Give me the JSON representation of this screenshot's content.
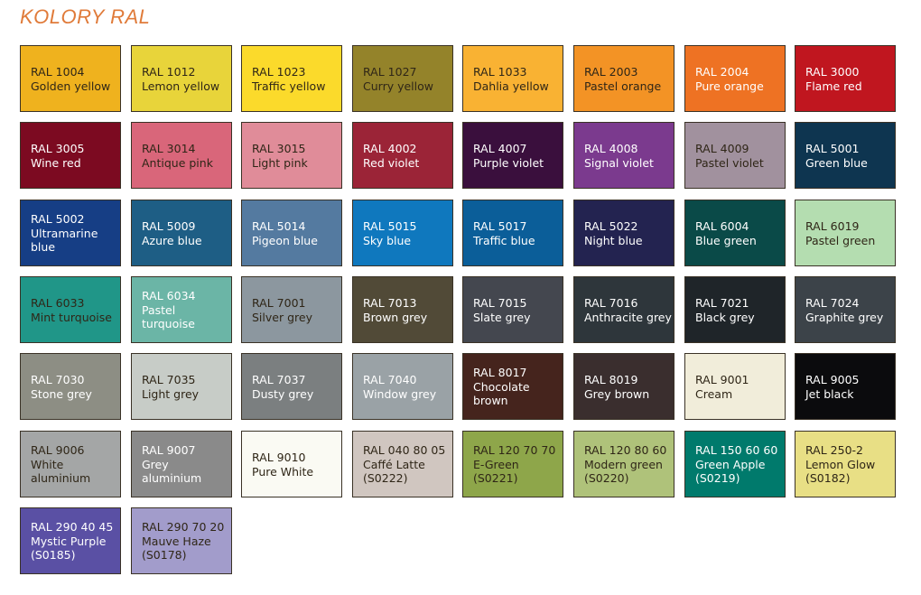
{
  "title": "KOLORY RAL",
  "swatches": [
    [
      {
        "code": "RAL 1004",
        "name": "Golden yellow",
        "color": "#EFB21E",
        "text": "dark"
      },
      {
        "code": "RAL 1012",
        "name": "Lemon yellow",
        "color": "#E8D43A",
        "text": "dark"
      },
      {
        "code": "RAL 1023",
        "name": "Traffic yellow",
        "color": "#FBDA2B",
        "text": "dark"
      },
      {
        "code": "RAL 1027",
        "name": "Curry yellow",
        "color": "#94832A",
        "text": "dark"
      },
      {
        "code": "RAL 1033",
        "name": "Dahlia yellow",
        "color": "#F9B233",
        "text": "dark"
      },
      {
        "code": "RAL 2003",
        "name": "Pastel orange",
        "color": "#F39325",
        "text": "dark"
      },
      {
        "code": "RAL 2004",
        "name": "Pure orange",
        "color": "#EE7223",
        "text": "light"
      },
      {
        "code": "RAL 3000",
        "name": "Flame red",
        "color": "#C0161F",
        "text": "light"
      }
    ],
    [
      {
        "code": "RAL 3005",
        "name": "Wine red",
        "color": "#7C0A21",
        "text": "light"
      },
      {
        "code": "RAL 3014",
        "name": "Antique pink",
        "color": "#D9667A",
        "text": "dark"
      },
      {
        "code": "RAL 3015",
        "name": "Light pink",
        "color": "#E08C99",
        "text": "dark"
      },
      {
        "code": "RAL 4002",
        "name": "Red violet",
        "color": "#9B2437",
        "text": "light"
      },
      {
        "code": "RAL 4007",
        "name": "Purple violet",
        "color": "#3A0F3D",
        "text": "light"
      },
      {
        "code": "RAL 4008",
        "name": "Signal violet",
        "color": "#7B3A8E",
        "text": "light"
      },
      {
        "code": "RAL 4009",
        "name": "Pastel violet",
        "color": "#A1919E",
        "text": "dark"
      },
      {
        "code": "RAL 5001",
        "name": "Green blue",
        "color": "#0E3550",
        "text": "light"
      }
    ],
    [
      {
        "code": "RAL 5002",
        "name": "Ultramarine blue",
        "color": "#163E85",
        "text": "light"
      },
      {
        "code": "RAL 5009",
        "name": "Azure blue",
        "color": "#1E5E85",
        "text": "light"
      },
      {
        "code": "RAL 5014",
        "name": "Pigeon blue",
        "color": "#547AA0",
        "text": "light"
      },
      {
        "code": "RAL 5015",
        "name": "Sky blue",
        "color": "#0F78BE",
        "text": "light"
      },
      {
        "code": "RAL 5017",
        "name": "Traffic blue",
        "color": "#0B5E99",
        "text": "light"
      },
      {
        "code": "RAL 5022",
        "name": "Night blue",
        "color": "#232350",
        "text": "light"
      },
      {
        "code": "RAL 6004",
        "name": "Blue green",
        "color": "#0A4A48",
        "text": "light"
      },
      {
        "code": "RAL 6019",
        "name": "Pastel green",
        "color": "#B4DDB0",
        "text": "dark"
      }
    ],
    [
      {
        "code": "RAL 6033",
        "name": "Mint turquoise",
        "color": "#209688",
        "text": "dark"
      },
      {
        "code": "RAL 6034",
        "name": "Pastel turquoise",
        "color": "#6BB5A6",
        "text": "light"
      },
      {
        "code": "RAL 7001",
        "name": "Silver grey",
        "color": "#8C979F",
        "text": "dark"
      },
      {
        "code": "RAL 7013",
        "name": "Brown grey",
        "color": "#514A37",
        "text": "light"
      },
      {
        "code": "RAL 7015",
        "name": "Slate grey",
        "color": "#44474F",
        "text": "light"
      },
      {
        "code": "RAL 7016",
        "name": "Anthracite grey",
        "color": "#2E363B",
        "text": "light"
      },
      {
        "code": "RAL 7021",
        "name": "Black grey",
        "color": "#1F2529",
        "text": "light"
      },
      {
        "code": "RAL 7024",
        "name": "Graphite grey",
        "color": "#3C4349",
        "text": "light"
      }
    ],
    [
      {
        "code": "RAL 7030",
        "name": "Stone grey",
        "color": "#8D8E84",
        "text": "light"
      },
      {
        "code": "RAL 7035",
        "name": "Light grey",
        "color": "#C7CCC7",
        "text": "dark"
      },
      {
        "code": "RAL 7037",
        "name": "Dusty grey",
        "color": "#7B7F80",
        "text": "light"
      },
      {
        "code": "RAL 7040",
        "name": "Window grey",
        "color": "#9AA2A6",
        "text": "light"
      },
      {
        "code": "RAL 8017",
        "name": "Chocolate brown",
        "color": "#45241D",
        "text": "light"
      },
      {
        "code": "RAL 8019",
        "name": "Grey brown",
        "color": "#3A2E2E",
        "text": "light"
      },
      {
        "code": "RAL 9001",
        "name": "Cream",
        "color": "#F1EDDA",
        "text": "dark"
      },
      {
        "code": "RAL 9005",
        "name": "Jet black",
        "color": "#0B0B0D",
        "text": "light"
      }
    ],
    [
      {
        "code": "RAL 9006",
        "name": "White aluminium",
        "color": "#A4A6A6",
        "text": "dark"
      },
      {
        "code": "RAL 9007",
        "name": "Grey aluminium",
        "color": "#8A8A8A",
        "text": "light"
      },
      {
        "code": "RAL 9010",
        "name": "Pure White",
        "color": "#FAFAF3",
        "text": "dark"
      },
      {
        "code": "RAL 040 80 05",
        "name": "Caffé Latte",
        "ref": "(S0222)",
        "color": "#D0C6C0",
        "text": "dark"
      },
      {
        "code": "RAL 120 70 70",
        "name": "E-Green",
        "ref": "(S0221)",
        "color": "#8EA64A",
        "text": "dark"
      },
      {
        "code": "RAL 120 80 60",
        "name": "Modern green",
        "ref": "(S0220)",
        "color": "#AFC27A",
        "text": "dark"
      },
      {
        "code": "RAL 150 60 60",
        "name": "Green Apple",
        "ref": "(S0219)",
        "color": "#007A6C",
        "text": "light"
      },
      {
        "code": "RAL 250-2",
        "name": "Lemon Glow",
        "ref": "(S0182)",
        "color": "#E8DF85",
        "text": "dark"
      }
    ],
    [
      {
        "code": "RAL 290 40 45",
        "name": "Mystic Purple",
        "ref": "(S0185)",
        "color": "#5A50A4",
        "text": "light"
      },
      {
        "code": "RAL 290 70 20",
        "name": "Mauve Haze",
        "ref": "(S0178)",
        "color": "#A29CCB",
        "text": "dark"
      }
    ]
  ]
}
